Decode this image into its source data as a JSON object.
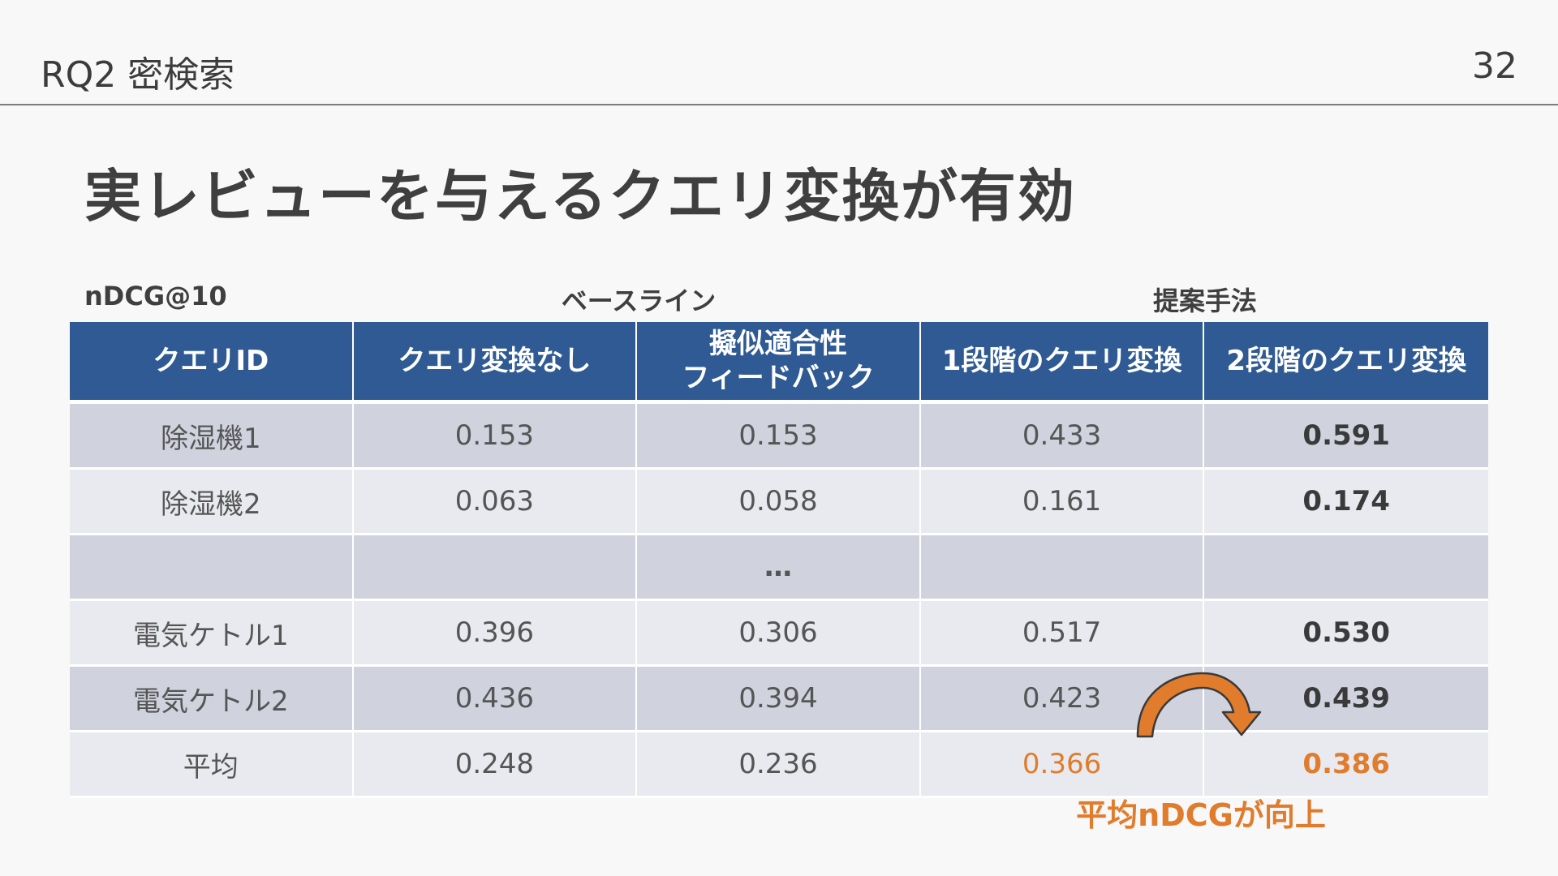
{
  "header": {
    "section": "RQ2 密検索",
    "page_number": "32"
  },
  "title": "実レビューを与えるクエリ変換が有効",
  "table": {
    "metric_label": "nDCG@10",
    "group_labels": {
      "baseline": "ベースライン",
      "proposed": "提案手法"
    },
    "columns": [
      "クエリID",
      "クエリ変換なし",
      "擬似適合性\nフィードバック",
      "1段階のクエリ変換",
      "2段階のクエリ変換"
    ],
    "rows": [
      [
        "除湿機1",
        "0.153",
        "0.153",
        "0.433",
        "0.591"
      ],
      [
        "除湿機2",
        "0.063",
        "0.058",
        "0.161",
        "0.174"
      ],
      [
        "",
        "",
        "…",
        "",
        ""
      ],
      [
        "電気ケトル1",
        "0.396",
        "0.306",
        "0.517",
        "0.530"
      ],
      [
        "電気ケトル2",
        "0.436",
        "0.394",
        "0.423",
        "0.439"
      ],
      [
        "平均",
        "0.248",
        "0.236",
        "0.366",
        "0.386"
      ]
    ]
  },
  "callout": "平均nDCGが向上",
  "colors": {
    "header_bg": "#2f5a93",
    "row_dark": "#d0d3de",
    "row_light": "#e9eaef",
    "accent_orange": "#e07c2c",
    "background": "#f8f8f8"
  }
}
